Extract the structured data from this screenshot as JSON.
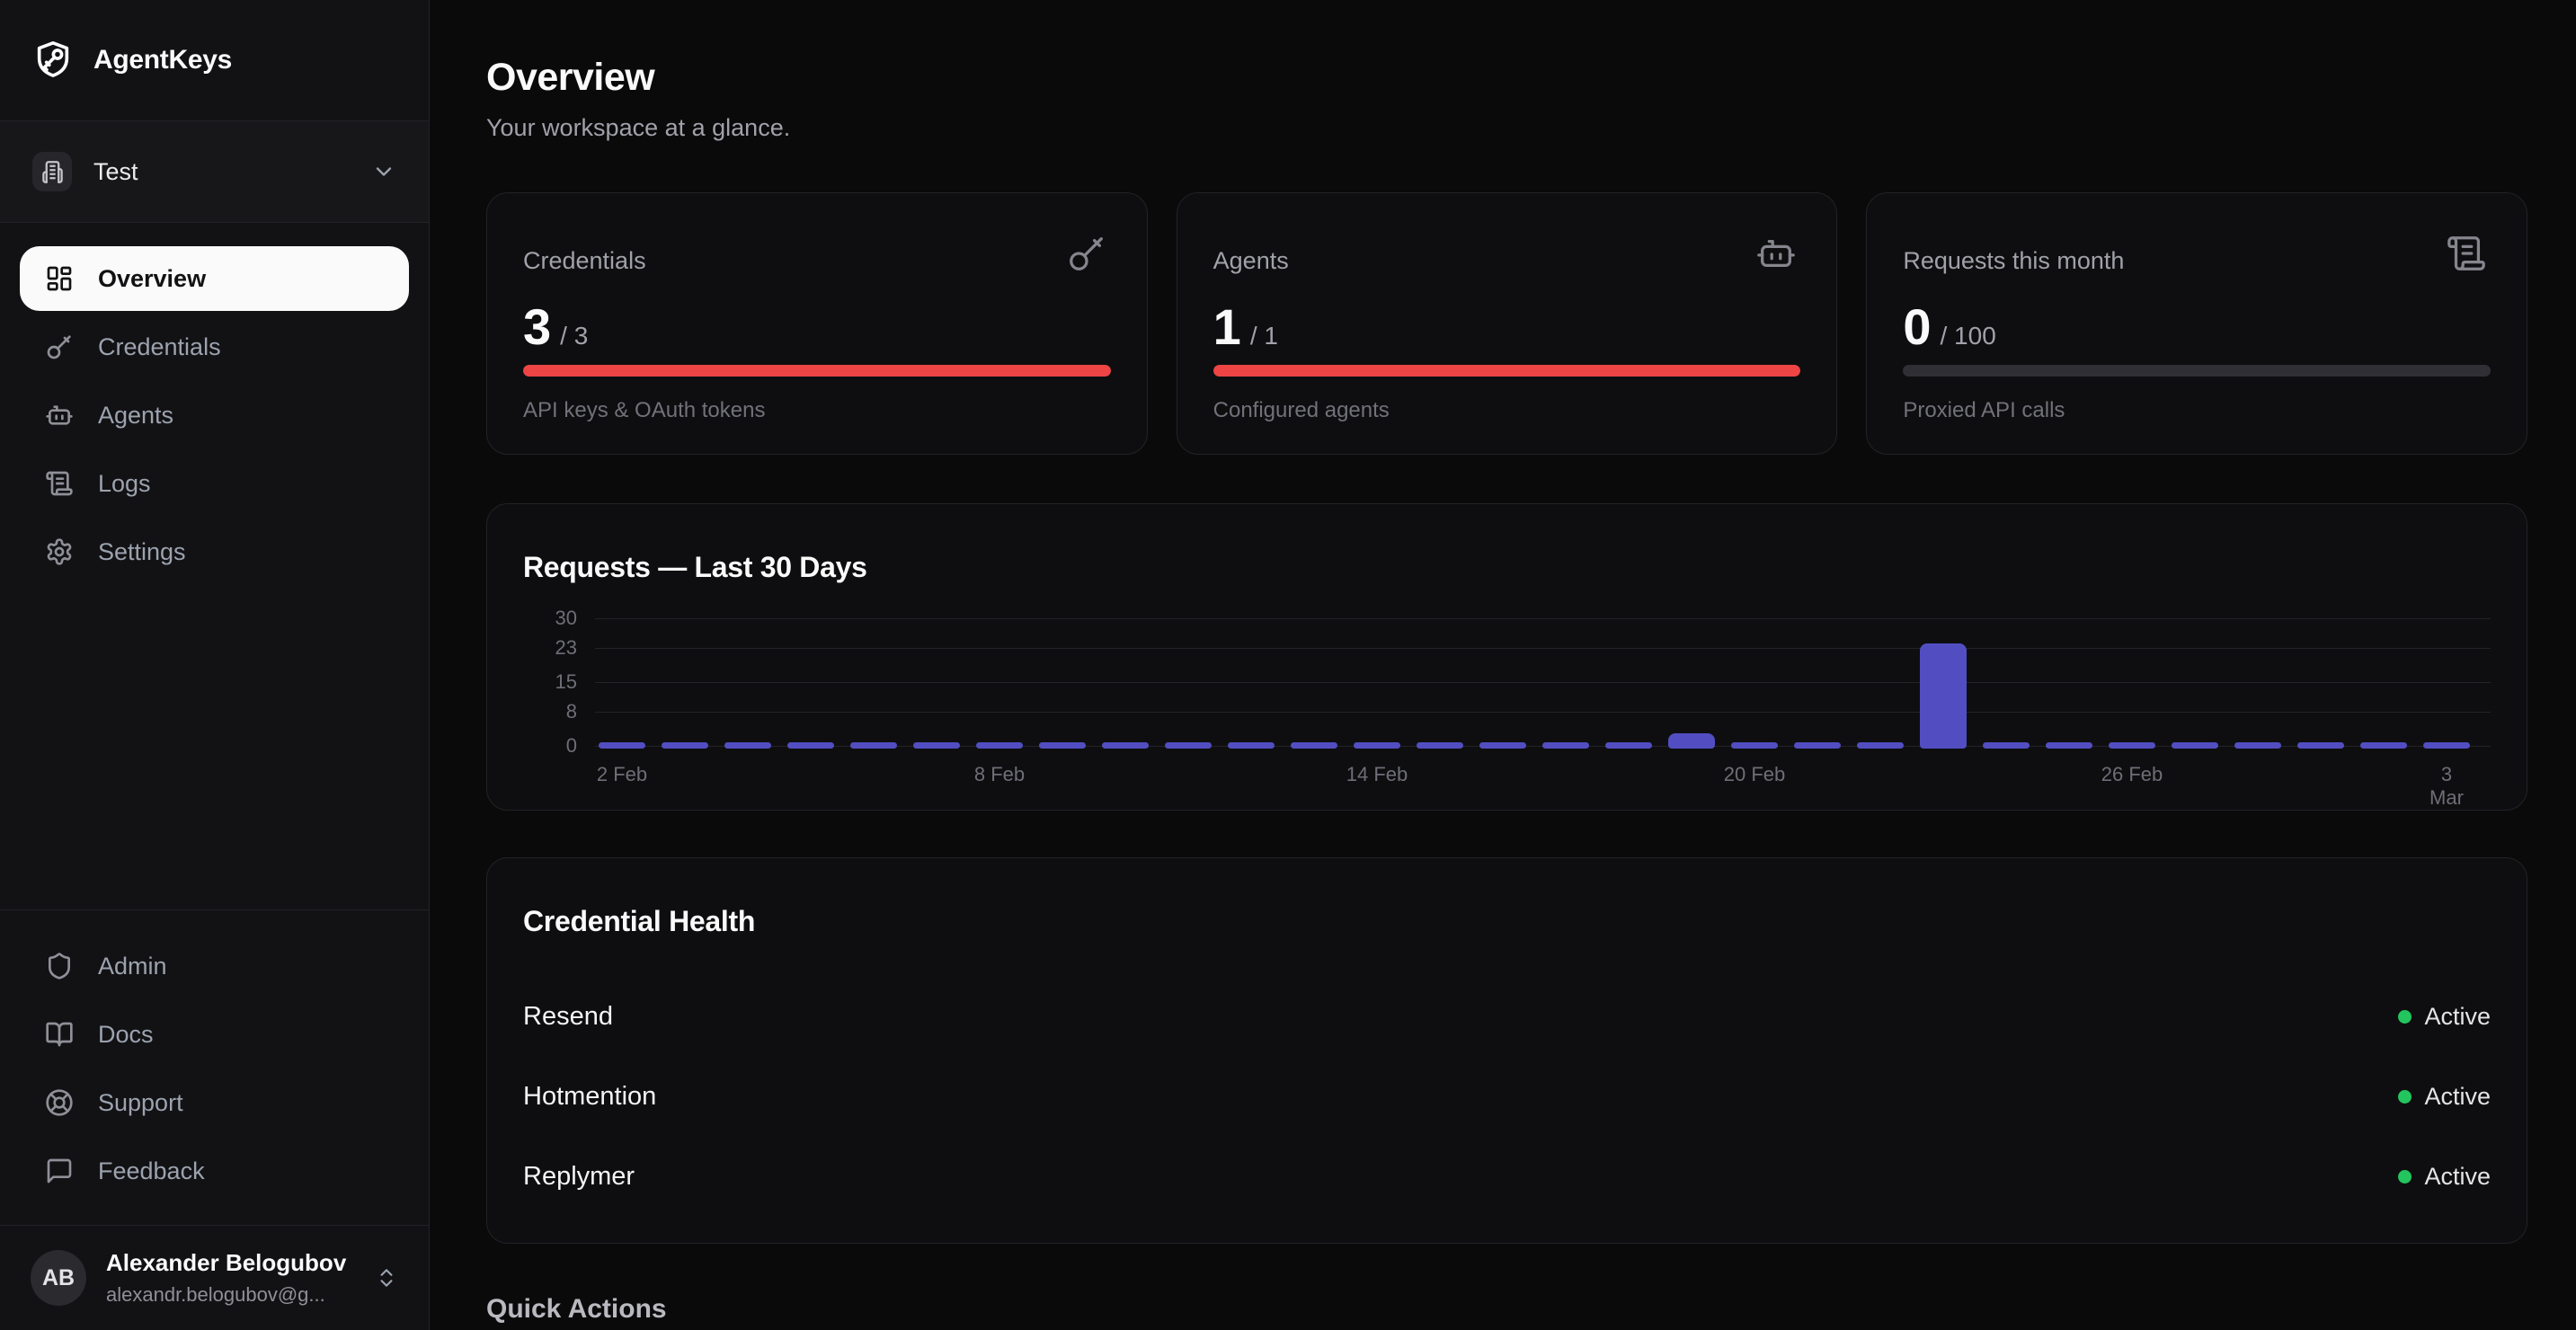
{
  "app": {
    "name": "AgentKeys"
  },
  "sidebar": {
    "workspace": {
      "label": "Test",
      "icon": "building-icon"
    },
    "nav": [
      {
        "label": "Overview",
        "icon": "dashboard-icon",
        "active": true
      },
      {
        "label": "Credentials",
        "icon": "key-icon",
        "active": false
      },
      {
        "label": "Agents",
        "icon": "robot-icon",
        "active": false
      },
      {
        "label": "Logs",
        "icon": "scroll-icon",
        "active": false
      },
      {
        "label": "Settings",
        "icon": "gear-icon",
        "active": false
      }
    ],
    "secondary_nav": [
      {
        "label": "Admin",
        "icon": "shield-icon"
      },
      {
        "label": "Docs",
        "icon": "book-open-icon"
      },
      {
        "label": "Support",
        "icon": "lifebuoy-icon"
      },
      {
        "label": "Feedback",
        "icon": "message-icon"
      }
    ],
    "user": {
      "initials": "AB",
      "name": "Alexander Belogubov",
      "email": "alexandr.belogubov@g..."
    }
  },
  "header": {
    "title": "Overview",
    "subtitle": "Your workspace at a glance."
  },
  "stats": [
    {
      "title": "Credentials",
      "value": "3",
      "max": "/ 3",
      "caption": "API keys & OAuth tokens",
      "progress": 100,
      "bar_color": "#ef4444",
      "icon": "key-icon"
    },
    {
      "title": "Agents",
      "value": "1",
      "max": "/ 1",
      "caption": "Configured agents",
      "progress": 100,
      "bar_color": "#ef4444",
      "icon": "robot-icon"
    },
    {
      "title": "Requests this month",
      "value": "0",
      "max": "/ 100",
      "caption": "Proxied API calls",
      "progress": 0,
      "bar_color": "#ef4444",
      "icon": "scroll-icon"
    }
  ],
  "chart": {
    "title": "Requests — Last 30 Days",
    "chart_data": {
      "type": "bar",
      "x": [
        "2 Feb",
        "3 Feb",
        "4 Feb",
        "5 Feb",
        "6 Feb",
        "7 Feb",
        "8 Feb",
        "9 Feb",
        "10 Feb",
        "11 Feb",
        "12 Feb",
        "13 Feb",
        "14 Feb",
        "15 Feb",
        "16 Feb",
        "17 Feb",
        "18 Feb",
        "19 Feb",
        "20 Feb",
        "21 Feb",
        "22 Feb",
        "23 Feb",
        "24 Feb",
        "25 Feb",
        "26 Feb",
        "27 Feb",
        "28 Feb",
        "1 Mar",
        "2 Mar",
        "3 Mar"
      ],
      "values": [
        0,
        0,
        0,
        0,
        0,
        0,
        0,
        0,
        0,
        0,
        0,
        0,
        0,
        0,
        0,
        0,
        0,
        3,
        0,
        0,
        0,
        24,
        0,
        0,
        0,
        0,
        0,
        0,
        0,
        0
      ],
      "ylim": [
        0,
        30
      ],
      "yticks": [
        0,
        8,
        15,
        23,
        30
      ],
      "xticks": [
        {
          "i": 0,
          "label": "2 Feb"
        },
        {
          "i": 6,
          "label": "8 Feb"
        },
        {
          "i": 12,
          "label": "14 Feb"
        },
        {
          "i": 18,
          "label": "20 Feb"
        },
        {
          "i": 24,
          "label": "26 Feb"
        },
        {
          "i": 29,
          "label": "3 Mar",
          "wrap": true
        }
      ],
      "bar_color": "#524ec2",
      "grid": true,
      "xlabel": "",
      "ylabel": ""
    }
  },
  "health": {
    "title": "Credential Health",
    "status_color": "#22c55e",
    "rows": [
      {
        "name": "Resend",
        "status": "Active"
      },
      {
        "name": "Hotmention",
        "status": "Active"
      },
      {
        "name": "Replymer",
        "status": "Active"
      }
    ]
  },
  "quick_actions": {
    "title": "Quick Actions"
  }
}
